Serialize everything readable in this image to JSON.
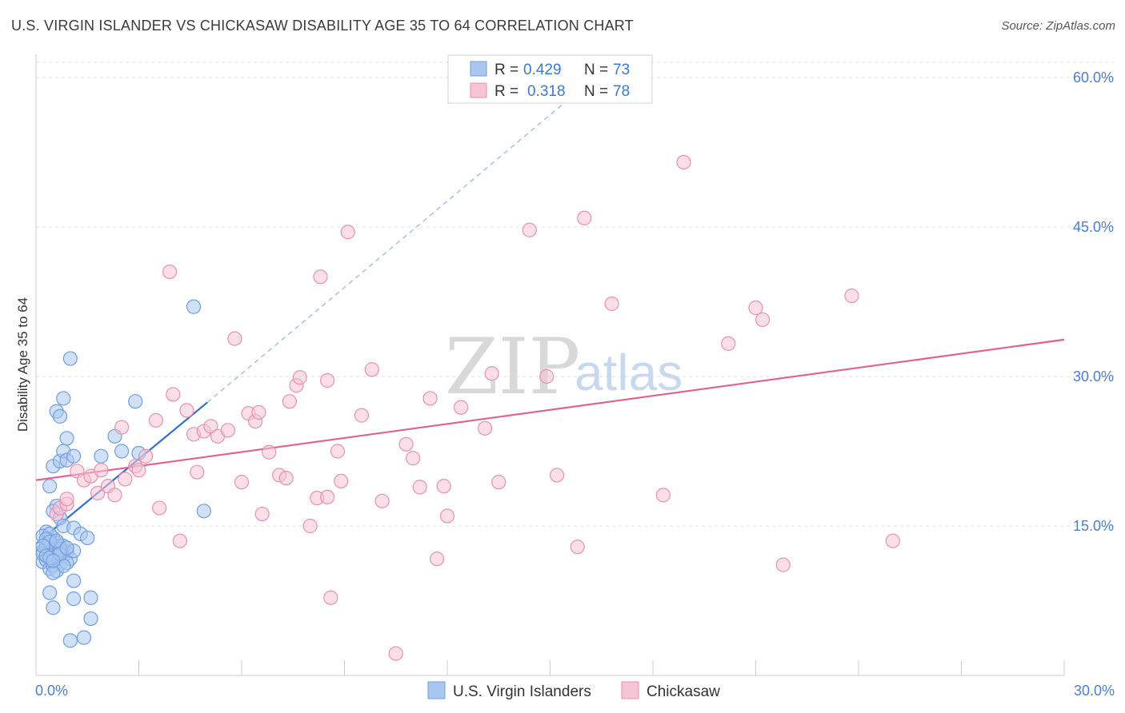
{
  "title": "U.S. VIRGIN ISLANDER VS CHICKASAW DISABILITY AGE 35 TO 64 CORRELATION CHART",
  "source": "Source: ZipAtlas.com",
  "watermark": {
    "zip": "ZIP",
    "atlas": "atlas"
  },
  "colors": {
    "blue_fill": "#a9c6f0",
    "blue_stroke": "#6f9ee0",
    "blue_line": "#2f6fd1",
    "pink_fill": "#f6c4d4",
    "pink_stroke": "#e891ad",
    "pink_line": "#e0608e",
    "grid": "#dddddd",
    "tick_text": "#4a7fcf"
  },
  "legend": {
    "rows": [
      {
        "r_label": "R = ",
        "r_value": "0.429",
        "n_label": "N = ",
        "n_value": "73",
        "color": "blue"
      },
      {
        "r_label": "R = ",
        "r_value": "0.318",
        "n_label": "N = ",
        "n_value": "78",
        "color": "pink"
      }
    ]
  },
  "bottom_legend": [
    "U.S. Virgin Islanders",
    "Chickasaw"
  ],
  "chart_data": {
    "type": "scatter",
    "title": "U.S. VIRGIN ISLANDER VS CHICKASAW DISABILITY AGE 35 TO 64 CORRELATION CHART",
    "xlabel": "",
    "ylabel": "Disability Age 35 to 64",
    "xlim": [
      0,
      30
    ],
    "ylim": [
      0,
      62
    ],
    "x_ticks": [
      "0.0%",
      "30.0%"
    ],
    "y_ticks": [
      {
        "value": 15,
        "label": "15.0%"
      },
      {
        "value": 30,
        "label": "30.0%"
      },
      {
        "value": 45,
        "label": "45.0%"
      },
      {
        "value": 60,
        "label": "60.0%"
      }
    ],
    "series": [
      {
        "name": "U.S. Virgin Islanders",
        "color": "blue",
        "points": [
          [
            0.2,
            12.5
          ],
          [
            0.3,
            13.2
          ],
          [
            0.4,
            12.0
          ],
          [
            0.2,
            11.4
          ],
          [
            0.5,
            13.8
          ],
          [
            0.3,
            14.4
          ],
          [
            0.6,
            12.8
          ],
          [
            0.4,
            13.6
          ],
          [
            0.2,
            12.2
          ],
          [
            0.7,
            11.2
          ],
          [
            0.5,
            12.6
          ],
          [
            0.8,
            12.0
          ],
          [
            0.3,
            11.6
          ],
          [
            0.6,
            13.3
          ],
          [
            0.9,
            12.4
          ],
          [
            0.4,
            10.7
          ],
          [
            0.7,
            13.0
          ],
          [
            0.5,
            11.0
          ],
          [
            1.0,
            11.7
          ],
          [
            0.3,
            12.9
          ],
          [
            0.2,
            14.0
          ],
          [
            0.4,
            14.2
          ],
          [
            0.6,
            10.5
          ],
          [
            0.8,
            13.0
          ],
          [
            0.5,
            12.3
          ],
          [
            0.3,
            13.7
          ],
          [
            0.7,
            12.7
          ],
          [
            0.9,
            11.3
          ],
          [
            0.4,
            13.4
          ],
          [
            0.2,
            13.0
          ],
          [
            0.6,
            12.0
          ],
          [
            0.8,
            11.0
          ],
          [
            1.1,
            12.5
          ],
          [
            0.5,
            10.3
          ],
          [
            0.3,
            12.0
          ],
          [
            0.4,
            11.8
          ],
          [
            0.7,
            12.2
          ],
          [
            0.6,
            13.5
          ],
          [
            0.9,
            12.8
          ],
          [
            0.5,
            11.5
          ],
          [
            0.6,
            17.0
          ],
          [
            0.5,
            16.5
          ],
          [
            0.7,
            15.8
          ],
          [
            0.8,
            15.0
          ],
          [
            1.1,
            14.8
          ],
          [
            1.3,
            14.2
          ],
          [
            1.5,
            13.8
          ],
          [
            0.4,
            19.0
          ],
          [
            0.5,
            21.0
          ],
          [
            0.7,
            21.5
          ],
          [
            0.8,
            22.5
          ],
          [
            0.9,
            21.6
          ],
          [
            1.1,
            22.0
          ],
          [
            0.6,
            26.5
          ],
          [
            0.7,
            26.0
          ],
          [
            0.8,
            27.8
          ],
          [
            0.9,
            23.8
          ],
          [
            1.0,
            31.8
          ],
          [
            1.9,
            22.0
          ],
          [
            2.3,
            24.0
          ],
          [
            2.5,
            22.5
          ],
          [
            2.9,
            27.5
          ],
          [
            3.0,
            22.3
          ],
          [
            4.6,
            37.0
          ],
          [
            4.9,
            16.5
          ],
          [
            0.4,
            8.3
          ],
          [
            0.5,
            6.8
          ],
          [
            1.1,
            7.7
          ],
          [
            1.6,
            7.8
          ],
          [
            1.6,
            5.7
          ],
          [
            1.0,
            3.5
          ],
          [
            1.4,
            3.8
          ],
          [
            1.1,
            9.5
          ]
        ]
      },
      {
        "name": "Chickasaw",
        "color": "pink",
        "points": [
          [
            0.6,
            16.2
          ],
          [
            0.7,
            16.8
          ],
          [
            0.9,
            17.2
          ],
          [
            0.9,
            17.7
          ],
          [
            1.2,
            20.5
          ],
          [
            1.4,
            19.6
          ],
          [
            1.6,
            20.0
          ],
          [
            1.8,
            18.3
          ],
          [
            1.9,
            20.6
          ],
          [
            2.1,
            19.0
          ],
          [
            2.3,
            18.1
          ],
          [
            2.5,
            24.9
          ],
          [
            2.6,
            19.7
          ],
          [
            2.9,
            21.0
          ],
          [
            3.0,
            20.6
          ],
          [
            3.2,
            22.0
          ],
          [
            3.5,
            25.6
          ],
          [
            3.6,
            16.8
          ],
          [
            3.9,
            40.5
          ],
          [
            4.0,
            28.2
          ],
          [
            4.2,
            13.5
          ],
          [
            4.4,
            26.6
          ],
          [
            4.6,
            24.2
          ],
          [
            4.7,
            20.4
          ],
          [
            4.9,
            24.5
          ],
          [
            5.1,
            25.0
          ],
          [
            5.3,
            24.0
          ],
          [
            5.6,
            24.6
          ],
          [
            5.8,
            33.8
          ],
          [
            6.0,
            19.4
          ],
          [
            6.2,
            26.3
          ],
          [
            6.4,
            25.5
          ],
          [
            6.6,
            16.2
          ],
          [
            6.8,
            22.4
          ],
          [
            7.1,
            20.1
          ],
          [
            7.3,
            19.8
          ],
          [
            7.4,
            27.5
          ],
          [
            7.6,
            29.1
          ],
          [
            7.7,
            29.9
          ],
          [
            8.0,
            15.0
          ],
          [
            8.2,
            17.8
          ],
          [
            8.3,
            40.0
          ],
          [
            8.5,
            29.6
          ],
          [
            8.6,
            7.8
          ],
          [
            8.8,
            22.5
          ],
          [
            8.9,
            19.5
          ],
          [
            9.1,
            44.5
          ],
          [
            9.5,
            26.1
          ],
          [
            9.8,
            30.7
          ],
          [
            10.1,
            17.5
          ],
          [
            10.5,
            2.2
          ],
          [
            10.8,
            23.2
          ],
          [
            11.0,
            21.8
          ],
          [
            11.2,
            18.9
          ],
          [
            11.5,
            27.8
          ],
          [
            11.7,
            11.7
          ],
          [
            11.9,
            19.0
          ],
          [
            12.0,
            16.0
          ],
          [
            12.4,
            26.9
          ],
          [
            13.1,
            24.8
          ],
          [
            13.3,
            30.3
          ],
          [
            13.5,
            19.4
          ],
          [
            14.4,
            44.7
          ],
          [
            14.9,
            30.0
          ],
          [
            15.2,
            20.1
          ],
          [
            15.8,
            12.9
          ],
          [
            16.0,
            45.9
          ],
          [
            16.8,
            37.3
          ],
          [
            18.3,
            18.1
          ],
          [
            18.9,
            51.5
          ],
          [
            20.2,
            33.3
          ],
          [
            21.0,
            36.9
          ],
          [
            21.2,
            35.7
          ],
          [
            21.8,
            11.1
          ],
          [
            23.8,
            38.1
          ],
          [
            25.0,
            13.5
          ],
          [
            8.5,
            17.9
          ],
          [
            6.5,
            26.4
          ]
        ]
      }
    ],
    "trend_lines": [
      {
        "series": "U.S. Virgin Islanders",
        "x": [
          0.0,
          5.0
        ],
        "y": [
          13.2,
          27.4
        ],
        "extended_dashed_to": [
          15.5,
          57.7
        ]
      },
      {
        "series": "Chickasaw",
        "x": [
          0.0,
          30.0
        ],
        "y": [
          19.6,
          33.7
        ]
      }
    ]
  }
}
